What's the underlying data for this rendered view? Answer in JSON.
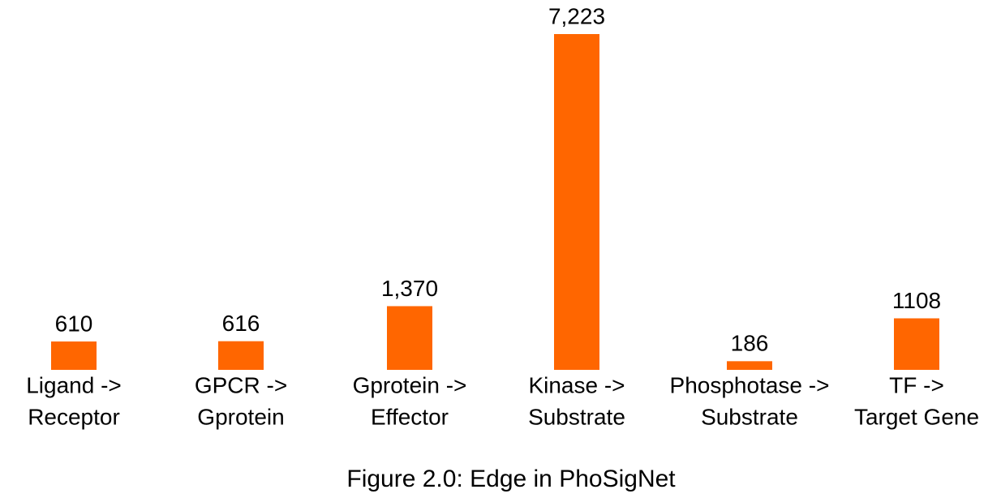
{
  "chart_data": {
    "type": "bar",
    "title": "Figure 2.0: Edge in PhoSigNet",
    "categories": [
      [
        "Ligand ->",
        "Receptor"
      ],
      [
        "GPCR ->",
        "Gprotein"
      ],
      [
        "Gprotein ->",
        "Effector"
      ],
      [
        "Kinase ->",
        "Substrate"
      ],
      [
        "Phosphotase ->",
        "Substrate"
      ],
      [
        "TF ->",
        "Target Gene"
      ]
    ],
    "values": [
      610,
      616,
      1370,
      7223,
      186,
      1108
    ],
    "value_labels": [
      "610",
      "616",
      "1,370",
      "7,223",
      "186",
      "1108"
    ],
    "color": "#ff6600"
  }
}
